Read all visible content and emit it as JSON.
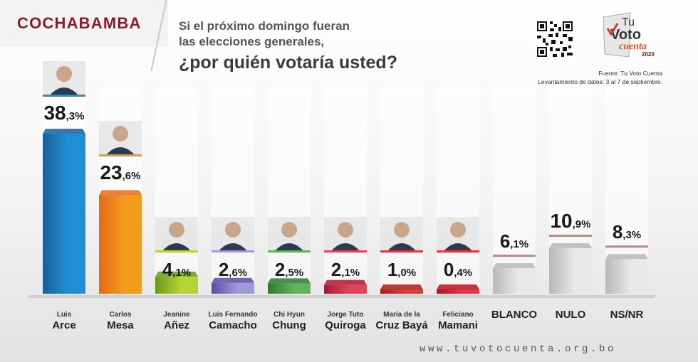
{
  "header": {
    "region": "COCHABAMBA",
    "question_line1": "Si el próximo domingo fueran",
    "question_line2": "las elecciones generales,",
    "question_line3": "¿por quién votaría usted?"
  },
  "logo": {
    "line1": "Tu",
    "line2": "Voto",
    "line3": "cuenta",
    "year": "2020"
  },
  "source": {
    "line1": "Fuente: Tu Voto Cuenta",
    "line2": "Levantamiento de datos: 3 al 7 de septiembre."
  },
  "footer": {
    "url": "www.tuvotocuenta.org.bo"
  },
  "icons": {
    "qr": "qr-code-icon",
    "logo": "ballot-box-logo-icon"
  },
  "chart_data": {
    "type": "bar",
    "ylim": [
      0,
      40
    ],
    "unit": "%",
    "categories": [
      {
        "line1": "Luis",
        "line2": "Arce",
        "value": 38.3,
        "int": "38",
        "dec": ",3%",
        "color": "#1f8fd6",
        "dark": "#1b5f99",
        "photo": true
      },
      {
        "line1": "Carlos",
        "line2": "Mesa",
        "value": 23.6,
        "int": "23",
        "dec": ",6%",
        "color": "#f39c1c",
        "dark": "#e66a1a",
        "photo": true
      },
      {
        "line1": "Jeanine",
        "line2": "Añez",
        "value": 4.1,
        "int": "4",
        "dec": ",1%",
        "color": "#b6d433",
        "dark": "#6a9a1c",
        "photo": true
      },
      {
        "line1": "Luis Fernando",
        "line2": "Camacho",
        "value": 2.6,
        "int": "2",
        "dec": ",6%",
        "color": "#9c9ad8",
        "dark": "#5e4aa8",
        "photo": true
      },
      {
        "line1": "Chi Hyun",
        "line2": "Chung",
        "value": 2.5,
        "int": "2",
        "dec": ",5%",
        "color": "#5fb35a",
        "dark": "#2d7a33",
        "photo": true
      },
      {
        "line1": "Jorge Tuto",
        "line2": "Quiroga",
        "value": 2.1,
        "int": "2",
        "dec": ",1%",
        "color": "#e0455c",
        "dark": "#a8182f",
        "photo": true
      },
      {
        "line1": "María de la",
        "line2": "Cruz Bayá",
        "value": 1.0,
        "int": "1",
        "dec": ",0%",
        "color": "#e23b3b",
        "dark": "#a41c1c",
        "photo": true
      },
      {
        "line1": "Feliciano",
        "line2": "Mamani",
        "value": 0.4,
        "int": "0",
        "dec": ",4%",
        "color": "#e8363c",
        "dark": "#b3141c",
        "photo": true
      },
      {
        "line1": "",
        "line2": "BLANCO",
        "value": 6.1,
        "int": "6",
        "dec": ",1%",
        "color": "#e9e9e9",
        "dark": "#b8b8b8",
        "photo": false
      },
      {
        "line1": "",
        "line2": "NULO",
        "value": 10.9,
        "int": "10",
        "dec": ",9%",
        "color": "#e9e9e9",
        "dark": "#b8b8b8",
        "photo": false
      },
      {
        "line1": "",
        "line2": "NS/NR",
        "value": 8.3,
        "int": "8",
        "dec": ",3%",
        "color": "#e9e9e9",
        "dark": "#b8b8b8",
        "photo": false
      }
    ]
  }
}
